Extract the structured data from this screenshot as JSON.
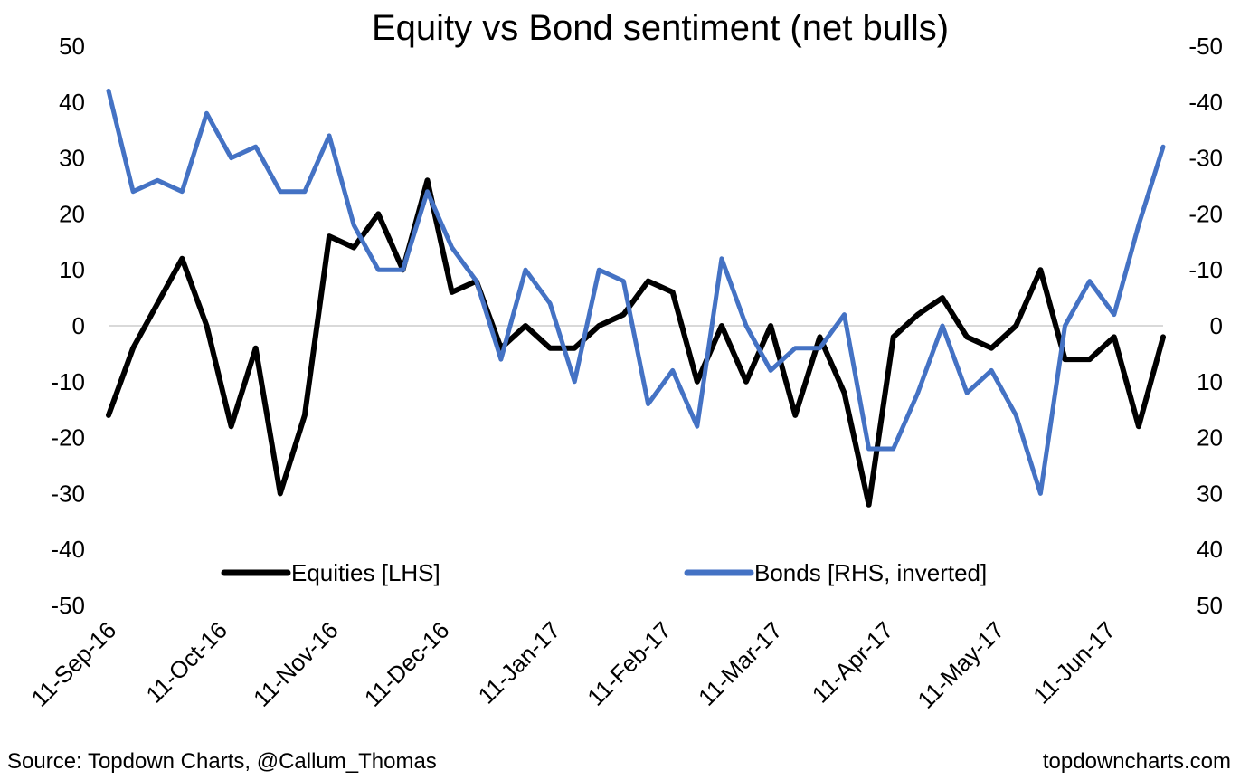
{
  "chart_data": {
    "type": "line",
    "title": "Equity vs Bond sentiment (net bulls)",
    "x_tick_labels": [
      "11-Sep-16",
      "11-Oct-16",
      "11-Nov-16",
      "11-Dec-16",
      "11-Jan-17",
      "11-Feb-17",
      "11-Mar-17",
      "11-Apr-17",
      "11-May-17",
      "11-Jun-17"
    ],
    "y_left": {
      "range": [
        -50,
        50
      ],
      "step": 10,
      "tick_labels": [
        "50",
        "40",
        "30",
        "20",
        "10",
        "0",
        "-10",
        "-20",
        "-30",
        "-40",
        "-50"
      ]
    },
    "y_right": {
      "range": [
        -50,
        50
      ],
      "inverted": true,
      "tick_labels": [
        "-50",
        "-40",
        "-30",
        "-20",
        "-10",
        "0",
        "10",
        "20",
        "30",
        "40",
        "50"
      ]
    },
    "zero_line": true,
    "legend_position": "bottom-inside",
    "series": [
      {
        "name": "Equities [LHS]",
        "axis": "left",
        "color": "#000000",
        "values": [
          -16,
          -4,
          4,
          12,
          0,
          -18,
          -4,
          -30,
          -16,
          16,
          14,
          20,
          10,
          26,
          6,
          8,
          -4,
          0,
          -4,
          -4,
          0,
          2,
          8,
          6,
          -10,
          0,
          -10,
          0,
          -16,
          -2,
          -12,
          -32,
          -2,
          2,
          5,
          -2,
          -4,
          0,
          10,
          -6,
          -6,
          -2,
          -18,
          -2
        ]
      },
      {
        "name": "Bonds [RHS, inverted]",
        "axis": "right",
        "color": "#4472C4",
        "values": [
          -42,
          -24,
          -26,
          -24,
          -38,
          -30,
          -32,
          -24,
          -24,
          -34,
          -18,
          -10,
          -10,
          -24,
          -14,
          -8,
          6,
          -10,
          -4,
          10,
          -10,
          -8,
          14,
          8,
          18,
          -12,
          0,
          8,
          4,
          4,
          -2,
          22,
          22,
          12,
          0,
          12,
          8,
          16,
          30,
          0,
          -8,
          -2,
          -18,
          -32
        ]
      }
    ]
  },
  "footer": {
    "source": "Source: Topdown Charts, @Callum_Thomas",
    "site": "topdowncharts.com"
  }
}
